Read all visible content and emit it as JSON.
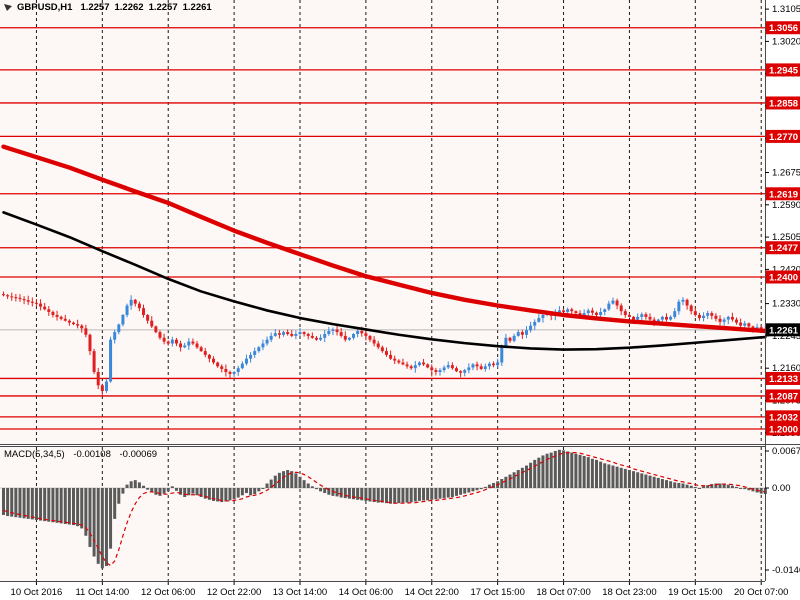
{
  "header": {
    "symbol": "GBPUSD,H1",
    "open": "1.2257",
    "high": "1.2262",
    "low": "1.2257",
    "close": "1.2261"
  },
  "macd": {
    "label": "MACD(5,34,5)",
    "value_main": "-0.00108",
    "value_signal": "-0.00069"
  },
  "colors": {
    "background": "#fdf8f5",
    "gutter": "#ffffff",
    "panel_border": "#4a4a4a",
    "grid_dash": "#1a1a1a",
    "level_red": "#dd0000",
    "bull": "#3b87d9",
    "bear": "#e02020",
    "ma_fast_black": "#000000",
    "ma_slow_red": "#dd0000",
    "macd_bar": "#5a5a5a",
    "macd_signal": "#dd0000",
    "current_price_line": "#b8b8b8",
    "current_label_bg": "#000000",
    "label_text": "#ffffff",
    "axis_text": "#000000"
  },
  "chart_data": {
    "type": "candlestick",
    "title": "GBPUSD,H1",
    "price_range": {
      "min": 1.1968,
      "max": 1.3129
    },
    "grid": "vertical-dashed",
    "x_labels": [
      {
        "bar": 8,
        "label": "10 Oct 2016"
      },
      {
        "bar": 24,
        "label": "11 Oct 14:00"
      },
      {
        "bar": 40,
        "label": "12 Oct 06:00"
      },
      {
        "bar": 56,
        "label": "12 Oct 22:00"
      },
      {
        "bar": 72,
        "label": "13 Oct 14:00"
      },
      {
        "bar": 88,
        "label": "14 Oct 06:00"
      },
      {
        "bar": 104,
        "label": "14 Oct 22:00"
      },
      {
        "bar": 120,
        "label": "17 Oct 15:00"
      },
      {
        "bar": 136,
        "label": "18 Oct 07:00"
      },
      {
        "bar": 152,
        "label": "18 Oct 23:00"
      },
      {
        "bar": 168,
        "label": "19 Oct 15:00"
      },
      {
        "bar": 184,
        "label": "20 Oct 07:00"
      }
    ],
    "price_ticks": [
      {
        "v": 1.3105,
        "label": "1.3105"
      },
      {
        "v": 1.302,
        "label": "1.3020"
      },
      {
        "v": 1.2935,
        "label": "1.2935"
      },
      {
        "v": 1.285,
        "label": "1.2850"
      },
      {
        "v": 1.2765,
        "label": "1.2765"
      },
      {
        "v": 1.2675,
        "label": "1.2675"
      },
      {
        "v": 1.259,
        "label": "1.2590"
      },
      {
        "v": 1.2505,
        "label": "1.2505"
      },
      {
        "v": 1.242,
        "label": "1.2420"
      },
      {
        "v": 1.233,
        "label": "1.2330"
      },
      {
        "v": 1.2245,
        "label": "1.2245"
      },
      {
        "v": 1.216,
        "label": "1.2160"
      },
      {
        "v": 1.2075,
        "label": "1.2075"
      },
      {
        "v": 1.199,
        "label": "1.1990"
      }
    ],
    "levels": [
      {
        "price": 1.3056,
        "label": "1.3056"
      },
      {
        "price": 1.2945,
        "label": "1.2945"
      },
      {
        "price": 1.2858,
        "label": "1.2858"
      },
      {
        "price": 1.277,
        "label": "1.2770"
      },
      {
        "price": 1.2619,
        "label": "1.2619"
      },
      {
        "price": 1.2477,
        "label": "1.2477"
      },
      {
        "price": 1.24,
        "label": "1.2400"
      },
      {
        "price": 1.2133,
        "label": "1.2133"
      },
      {
        "price": 1.2087,
        "label": "1.2087"
      },
      {
        "price": 1.2032,
        "label": "1.2032"
      },
      {
        "price": 1.2,
        "label": "1.2000"
      }
    ],
    "current_price": {
      "v": 1.2261,
      "label": "1.2261"
    },
    "candles": {
      "first_open": 1.2355,
      "closes": [
        1.2352,
        1.2349,
        1.2347,
        1.2345,
        1.2342,
        1.2339,
        1.2335,
        1.2332,
        1.233,
        1.2322,
        1.2315,
        1.2308,
        1.23,
        1.2295,
        1.229,
        1.2285,
        1.228,
        1.2276,
        1.2272,
        1.2265,
        1.2248,
        1.2205,
        1.215,
        1.2115,
        1.21,
        1.2125,
        1.2235,
        1.2255,
        1.2275,
        1.23,
        1.2325,
        1.234,
        1.233,
        1.2318,
        1.23,
        1.2285,
        1.227,
        1.2255,
        1.224,
        1.223,
        1.2225,
        1.2235,
        1.2225,
        1.2215,
        1.222,
        1.223,
        1.2225,
        1.2215,
        1.2205,
        1.2195,
        1.2185,
        1.2175,
        1.2165,
        1.2158,
        1.215,
        1.2145,
        1.215,
        1.216,
        1.2172,
        1.2185,
        1.2195,
        1.2205,
        1.2215,
        1.2225,
        1.2235,
        1.2245,
        1.2252,
        1.2248,
        1.2255,
        1.225,
        1.2245,
        1.225,
        1.2255,
        1.225,
        1.2245,
        1.224,
        1.2235,
        1.224,
        1.225,
        1.2258,
        1.2262,
        1.2255,
        1.2245,
        1.2235,
        1.224,
        1.225,
        1.2258,
        1.2252,
        1.2245,
        1.2235,
        1.2225,
        1.2215,
        1.2205,
        1.2195,
        1.2185,
        1.218,
        1.2175,
        1.217,
        1.2165,
        1.216,
        1.2168,
        1.2175,
        1.217,
        1.2162,
        1.2155,
        1.215,
        1.2155,
        1.2162,
        1.2168,
        1.216,
        1.2152,
        1.2148,
        1.2155,
        1.2162,
        1.217,
        1.2165,
        1.2158,
        1.2165,
        1.2172,
        1.2168,
        1.2175,
        1.222,
        1.224,
        1.2232,
        1.2245,
        1.2255,
        1.2248,
        1.226,
        1.2272,
        1.2282,
        1.2292,
        1.23,
        1.2305,
        1.2298,
        1.2305,
        1.2312,
        1.2308,
        1.2315,
        1.231,
        1.2305,
        1.2298,
        1.2305,
        1.2312,
        1.2306,
        1.23,
        1.2308,
        1.2315,
        1.233,
        1.2338,
        1.2325,
        1.231,
        1.23,
        1.2295,
        1.2288,
        1.2295,
        1.2302,
        1.2295,
        1.2288,
        1.2282,
        1.2288,
        1.2295,
        1.2288,
        1.2295,
        1.231,
        1.2335,
        1.234,
        1.2325,
        1.231,
        1.23,
        1.2292,
        1.2298,
        1.2305,
        1.2298,
        1.229,
        1.2282,
        1.2288,
        1.2295,
        1.2288,
        1.228,
        1.2272,
        1.2278,
        1.227,
        1.2262,
        1.2268,
        1.2262,
        1.2261
      ],
      "wick_overrides": {
        "0": {
          "h": 1.2362
        },
        "23": {
          "l": 1.2105
        },
        "24": {
          "l": 1.2086
        },
        "25": {
          "l": 1.2095
        },
        "31": {
          "h": 1.2352
        },
        "55": {
          "l": 1.2133
        },
        "104": {
          "l": 1.2138
        },
        "111": {
          "l": 1.2136
        },
        "148": {
          "h": 1.2346
        },
        "165": {
          "h": 1.2347
        }
      }
    },
    "overlays": {
      "ma_slow_red": [
        [
          0,
          1.2743
        ],
        [
          16,
          1.2688
        ],
        [
          24,
          1.2656
        ],
        [
          32,
          1.2625
        ],
        [
          40,
          1.2595
        ],
        [
          48,
          1.2558
        ],
        [
          56,
          1.2522
        ],
        [
          64,
          1.249
        ],
        [
          72,
          1.246
        ],
        [
          80,
          1.243
        ],
        [
          88,
          1.2402
        ],
        [
          96,
          1.238
        ],
        [
          104,
          1.2358
        ],
        [
          112,
          1.234
        ],
        [
          120,
          1.2325
        ],
        [
          128,
          1.2312
        ],
        [
          136,
          1.23
        ],
        [
          144,
          1.2291
        ],
        [
          152,
          1.2283
        ],
        [
          160,
          1.2277
        ],
        [
          168,
          1.2271
        ],
        [
          176,
          1.2265
        ],
        [
          185,
          1.2258
        ]
      ],
      "ma_fast_black": [
        [
          0,
          1.257
        ],
        [
          8,
          1.2538
        ],
        [
          16,
          1.2505
        ],
        [
          24,
          1.2468
        ],
        [
          32,
          1.2432
        ],
        [
          40,
          1.2395
        ],
        [
          48,
          1.2362
        ],
        [
          56,
          1.2336
        ],
        [
          64,
          1.2312
        ],
        [
          72,
          1.2292
        ],
        [
          80,
          1.2276
        ],
        [
          88,
          1.2262
        ],
        [
          96,
          1.2248
        ],
        [
          104,
          1.2236
        ],
        [
          112,
          1.2226
        ],
        [
          120,
          1.2218
        ],
        [
          128,
          1.2212
        ],
        [
          136,
          1.2209
        ],
        [
          144,
          1.221
        ],
        [
          152,
          1.2214
        ],
        [
          160,
          1.222
        ],
        [
          168,
          1.2227
        ],
        [
          176,
          1.2234
        ],
        [
          185,
          1.2242
        ]
      ]
    },
    "macd": {
      "params": "5,34,5",
      "range": {
        "max": 0.00674,
        "min": -0.0146
      },
      "scale_ticks": [
        {
          "v": 0.00674,
          "label": "0.00674"
        },
        {
          "v": 0.0,
          "label": "0.00"
        },
        {
          "v": -0.0146,
          "label": "-0.0146"
        }
      ],
      "histogram": [
        -0.0048,
        -0.005,
        -0.0051,
        -0.0052,
        -0.0053,
        -0.0054,
        -0.0055,
        -0.0056,
        -0.0057,
        -0.0058,
        -0.0059,
        -0.006,
        -0.0061,
        -0.0062,
        -0.0063,
        -0.0064,
        -0.0065,
        -0.0066,
        -0.0068,
        -0.0072,
        -0.0085,
        -0.0105,
        -0.0122,
        -0.0135,
        -0.0143,
        -0.0139,
        -0.0108,
        -0.0055,
        -0.0028,
        -0.001,
        0.0006,
        0.0012,
        0.0014,
        0.001,
        0.0004,
        -0.0003,
        -0.0008,
        -0.0012,
        -0.0014,
        -0.001,
        -0.0006,
        0.0003,
        -0.0005,
        -0.0012,
        -0.0016,
        -0.0013,
        -0.001,
        -0.0013,
        -0.0016,
        -0.0019,
        -0.0021,
        -0.0023,
        -0.0024,
        -0.0025,
        -0.0024,
        -0.0022,
        -0.002,
        -0.0017,
        -0.0013,
        -0.0009,
        -0.0013,
        -0.0011,
        -0.0006,
        0.0,
        0.0008,
        0.0015,
        0.0022,
        0.0027,
        0.003,
        0.0032,
        0.003,
        0.0026,
        0.002,
        0.0014,
        0.0008,
        0.0003,
        -0.0002,
        -0.0006,
        -0.0009,
        -0.0012,
        -0.0014,
        -0.0015,
        -0.0017,
        -0.0018,
        -0.0019,
        -0.002,
        -0.0021,
        -0.0022,
        -0.0023,
        -0.0024,
        -0.0025,
        -0.0026,
        -0.0026,
        -0.0027,
        -0.0028,
        -0.0028,
        -0.0027,
        -0.0026,
        -0.0026,
        -0.0025,
        -0.0024,
        -0.0023,
        -0.0022,
        -0.0022,
        -0.0021,
        -0.002,
        -0.0019,
        -0.0018,
        -0.0017,
        -0.0016,
        -0.0014,
        -0.0012,
        -0.001,
        -0.0008,
        -0.0006,
        -0.0004,
        -0.0002,
        0.0002,
        0.0006,
        0.0009,
        0.0012,
        0.0016,
        0.002,
        0.0024,
        0.0028,
        0.0032,
        0.0036,
        0.004,
        0.0045,
        0.005,
        0.0054,
        0.0058,
        0.0061,
        0.0063,
        0.0066,
        0.0068,
        0.0067,
        0.0065,
        0.0063,
        0.0061,
        0.0059,
        0.0057,
        0.0055,
        0.0052,
        0.005,
        0.0047,
        0.0044,
        0.0042,
        0.004,
        0.0038,
        0.0036,
        0.0034,
        0.0032,
        0.003,
        0.0028,
        0.0026,
        0.0024,
        0.0022,
        0.002,
        0.0018,
        0.0016,
        0.0014,
        0.0012,
        0.001,
        0.0009,
        0.0008,
        0.0006,
        0.0004,
        0.0002,
        0.0,
        0.0003,
        0.0005,
        0.0007,
        0.0008,
        0.0008,
        0.0007,
        0.0006,
        0.0004,
        0.0002,
        0.0,
        -0.0002,
        -0.0004,
        -0.0006,
        -0.0008,
        -0.001,
        -0.00108
      ],
      "signal": [
        -0.004,
        -0.0042,
        -0.0044,
        -0.0046,
        -0.0047,
        -0.0049,
        -0.005,
        -0.0052,
        -0.0053,
        -0.0055,
        -0.0056,
        -0.0057,
        -0.0058,
        -0.0059,
        -0.006,
        -0.0061,
        -0.0062,
        -0.0063,
        -0.0064,
        -0.0066,
        -0.0071,
        -0.008,
        -0.0093,
        -0.0108,
        -0.0122,
        -0.0133,
        -0.0138,
        -0.013,
        -0.011,
        -0.0085,
        -0.0062,
        -0.0043,
        -0.0028,
        -0.0017,
        -0.001,
        -0.0007,
        -0.0007,
        -0.0008,
        -0.001,
        -0.0011,
        -0.0011,
        -0.0009,
        -0.0008,
        -0.0009,
        -0.0011,
        -0.0012,
        -0.0012,
        -0.0012,
        -0.0013,
        -0.0015,
        -0.0017,
        -0.0019,
        -0.0021,
        -0.0022,
        -0.0023,
        -0.0023,
        -0.0022,
        -0.0021,
        -0.0019,
        -0.0016,
        -0.0014,
        -0.0013,
        -0.0011,
        -0.0008,
        -0.0004,
        0.0001,
        0.0007,
        0.0013,
        0.0019,
        0.0024,
        0.0027,
        0.0028,
        0.0027,
        0.0024,
        0.002,
        0.0015,
        0.001,
        0.0005,
        0.0001,
        -0.0003,
        -0.0006,
        -0.0009,
        -0.0011,
        -0.0013,
        -0.0015,
        -0.0016,
        -0.0017,
        -0.0018,
        -0.0019,
        -0.0021,
        -0.0022,
        -0.0023,
        -0.0024,
        -0.0025,
        -0.0026,
        -0.0027,
        -0.0027,
        -0.0027,
        -0.0027,
        -0.0026,
        -0.0026,
        -0.0025,
        -0.0024,
        -0.0023,
        -0.0022,
        -0.0022,
        -0.0021,
        -0.002,
        -0.0019,
        -0.0018,
        -0.0017,
        -0.0016,
        -0.0014,
        -0.0012,
        -0.001,
        -0.0008,
        -0.0006,
        -0.0003,
        0.0,
        0.0003,
        0.0006,
        0.0009,
        0.0013,
        0.0016,
        0.002,
        0.0024,
        0.0028,
        0.0031,
        0.0035,
        0.0039,
        0.0043,
        0.0047,
        0.0051,
        0.0054,
        0.0057,
        0.006,
        0.0062,
        0.0063,
        0.0063,
        0.0063,
        0.0062,
        0.006,
        0.0058,
        0.0056,
        0.0054,
        0.0052,
        0.005,
        0.0048,
        0.0046,
        0.0043,
        0.0041,
        0.0039,
        0.0037,
        0.0034,
        0.0032,
        0.003,
        0.0028,
        0.0026,
        0.0024,
        0.0022,
        0.002,
        0.0018,
        0.0016,
        0.0014,
        0.0012,
        0.0011,
        0.0009,
        0.0008,
        0.0006,
        0.0004,
        0.0004,
        0.0004,
        0.0005,
        0.0006,
        0.0007,
        0.0007,
        0.0007,
        0.0006,
        0.0005,
        0.0004,
        0.0002,
        0.0,
        -0.0002,
        -0.0004,
        -0.0006,
        -0.00069
      ]
    }
  }
}
